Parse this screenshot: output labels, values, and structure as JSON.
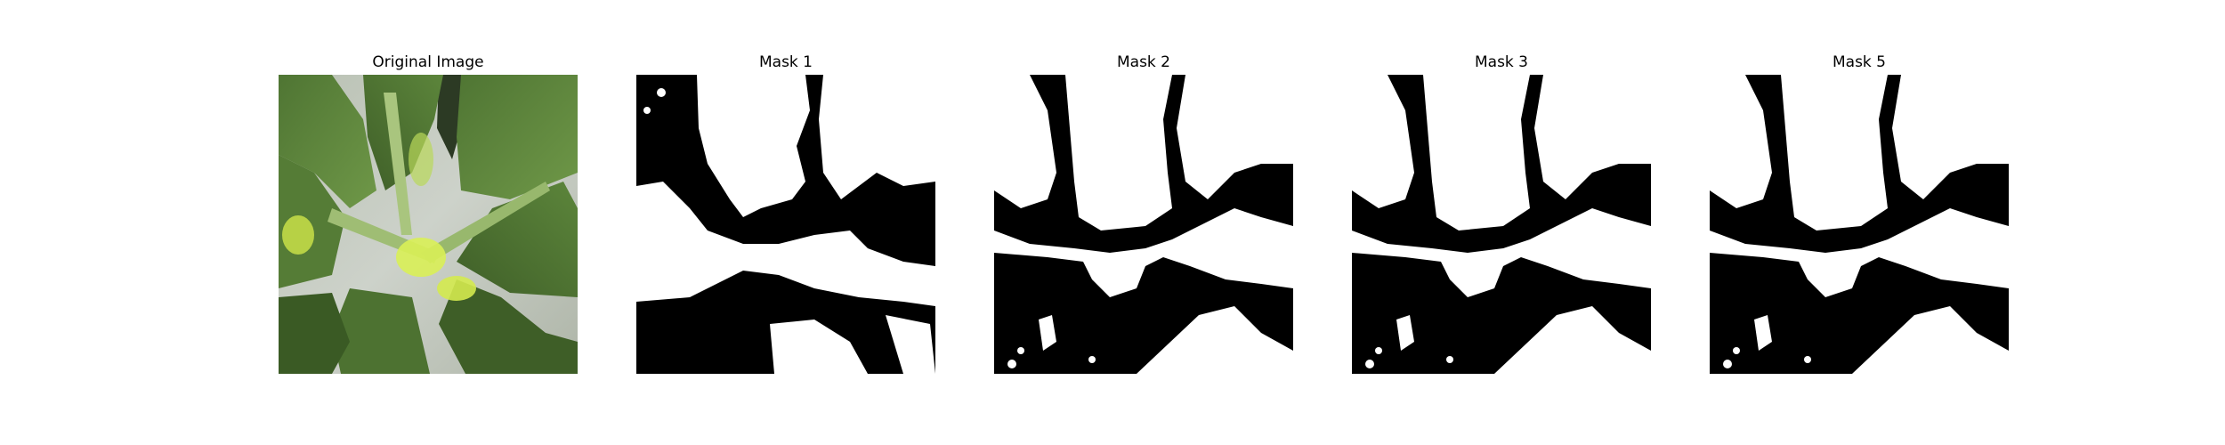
{
  "panels": [
    {
      "title": "Original Image",
      "kind": "photo"
    },
    {
      "title": "Mask 1",
      "kind": "mask",
      "variant": "mask1"
    },
    {
      "title": "Mask 2",
      "kind": "mask",
      "variant": "refined"
    },
    {
      "title": "Mask 3",
      "kind": "mask",
      "variant": "refined"
    },
    {
      "title": "Mask 5",
      "kind": "mask",
      "variant": "refined"
    }
  ],
  "colors": {
    "background": "#ffffff",
    "mask_foreground": "#ffffff",
    "mask_background": "#000000",
    "leaf_dark": "#46682e",
    "leaf_mid": "#5e8a3c",
    "leaf_light": "#8fb85a",
    "highlight": "#d9ef57",
    "backdrop": "#c2c8bf"
  }
}
